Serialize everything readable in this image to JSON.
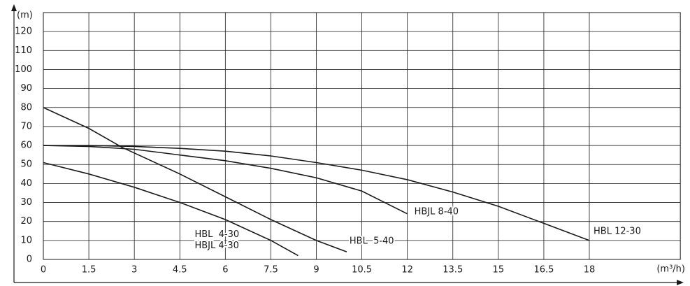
{
  "chart_data": {
    "type": "line",
    "y_label": "(m)",
    "x_label": "(m³/h)",
    "xlim": [
      0,
      21
    ],
    "ylim": [
      0,
      130
    ],
    "xticks": [
      0,
      1.5,
      3,
      4.5,
      6,
      7.5,
      9,
      10.5,
      12,
      13.5,
      15,
      16.5,
      18
    ],
    "yticks": [
      0,
      10,
      20,
      30,
      40,
      50,
      60,
      70,
      80,
      90,
      100,
      110,
      120
    ],
    "grid": true,
    "series": [
      {
        "names": [
          "HBL  4-30",
          "HBJL 4-30"
        ],
        "color": "#1a1a1a",
        "x": [
          0,
          1.5,
          3,
          4.5,
          6,
          7.5,
          8.4
        ],
        "values": [
          51,
          45,
          38,
          30,
          21,
          10,
          2
        ]
      },
      {
        "names": [
          "HBL  5-40"
        ],
        "color": "#1a1a1a",
        "x": [
          0,
          1.5,
          2.6,
          4.5,
          6,
          7.5,
          9,
          10
        ],
        "values": [
          80,
          69,
          59,
          45,
          33,
          21,
          10,
          4
        ]
      },
      {
        "names": [
          "HBJL 8-40"
        ],
        "color": "#1a1a1a",
        "x": [
          0,
          1.5,
          3,
          4.5,
          6,
          7.5,
          9,
          10.5,
          12
        ],
        "values": [
          60,
          59.5,
          58,
          55,
          52,
          48,
          43,
          36,
          24
        ]
      },
      {
        "names": [
          "HBL 12-30"
        ],
        "color": "#1a1a1a",
        "x": [
          0,
          1.5,
          3,
          4.5,
          6,
          7.5,
          9,
          10.5,
          12,
          13.5,
          15,
          16.5,
          18
        ],
        "values": [
          60,
          60,
          59.5,
          58.5,
          57,
          54.5,
          51,
          47,
          42,
          35.5,
          28,
          19,
          10
        ]
      }
    ]
  }
}
